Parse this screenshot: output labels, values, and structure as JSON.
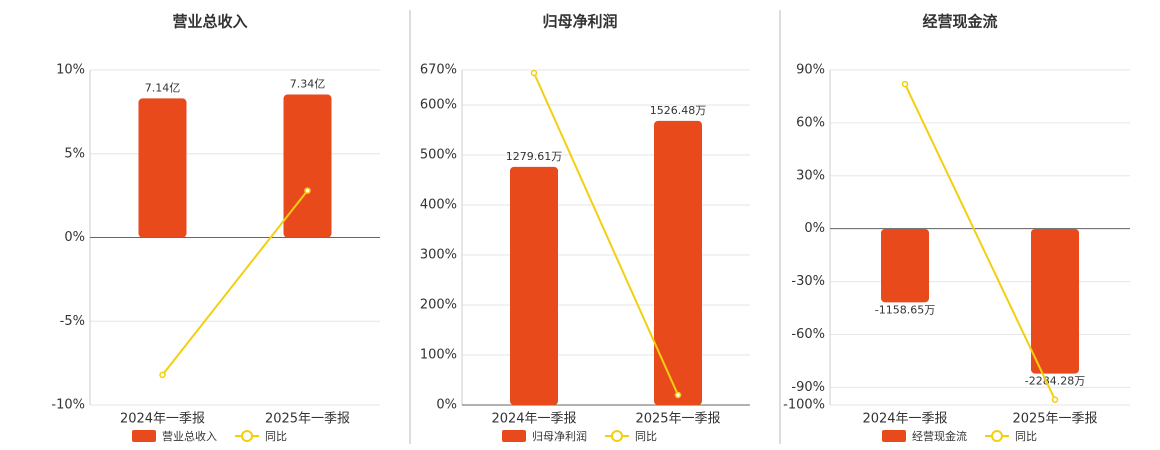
{
  "chart_data": [
    {
      "type": "bar",
      "title": "营业总收入",
      "categories": [
        "2024年一季报",
        "2025年一季报"
      ],
      "series": [
        {
          "name": "营业总收入",
          "type": "bar",
          "axis": "y2",
          "color": "#e84a1c",
          "values": [
            7.14,
            7.34
          ],
          "value_labels": [
            "7.14亿",
            "7.34亿"
          ]
        },
        {
          "name": "同比",
          "type": "line",
          "color": "#f2cf0f",
          "values": [
            -8.2,
            2.8
          ]
        }
      ],
      "ylim": [
        -10,
        10
      ],
      "yticks": [
        {
          "value": -10,
          "label": "-10%"
        },
        {
          "value": -5,
          "label": "-5%"
        },
        {
          "value": 0,
          "label": "0%"
        },
        {
          "value": 5,
          "label": "5%"
        },
        {
          "value": 10,
          "label": "10%"
        }
      ],
      "y2lim": [
        -8.6,
        8.6
      ],
      "grid": true
    },
    {
      "type": "bar",
      "title": "归母净利润",
      "categories": [
        "2024年一季报",
        "2025年一季报"
      ],
      "series": [
        {
          "name": "归母净利润",
          "type": "bar",
          "axis": "y2",
          "color": "#e84a1c",
          "values": [
            1279.61,
            1526.48
          ],
          "value_labels": [
            "1279.61万",
            "1526.48万"
          ]
        },
        {
          "name": "同比",
          "type": "line",
          "color": "#f2cf0f",
          "values": [
            664,
            20
          ]
        }
      ],
      "ylim": [
        0,
        670
      ],
      "yticks": [
        {
          "value": 0,
          "label": "0%"
        },
        {
          "value": 100,
          "label": "100%"
        },
        {
          "value": 200,
          "label": "200%"
        },
        {
          "value": 300,
          "label": "300%"
        },
        {
          "value": 400,
          "label": "400%"
        },
        {
          "value": 500,
          "label": "500%"
        },
        {
          "value": 600,
          "label": "600%"
        },
        {
          "value": 670,
          "label": "670%"
        }
      ],
      "y2lim": [
        0,
        1800
      ],
      "grid": true
    },
    {
      "type": "bar",
      "title": "经营现金流",
      "categories": [
        "2024年一季报",
        "2025年一季报"
      ],
      "series": [
        {
          "name": "经营现金流",
          "type": "bar",
          "axis": "y2",
          "color": "#e84a1c",
          "values": [
            -1158.65,
            -2284.28
          ],
          "value_labels": [
            "-1158.65万",
            "-2284.28万"
          ]
        },
        {
          "name": "同比",
          "type": "line",
          "color": "#f2cf0f",
          "values": [
            82,
            -97
          ]
        }
      ],
      "ylim": [
        -100,
        90
      ],
      "yticks": [
        {
          "value": -100,
          "label": "-100%"
        },
        {
          "value": -90,
          "label": "-90%"
        },
        {
          "value": -60,
          "label": "-60%"
        },
        {
          "value": -30,
          "label": "-30%"
        },
        {
          "value": 0,
          "label": "0%"
        },
        {
          "value": 30,
          "label": "30%"
        },
        {
          "value": 60,
          "label": "60%"
        },
        {
          "value": 90,
          "label": "90%"
        }
      ],
      "y2lim": [
        -2780,
        2510
      ],
      "grid": true
    }
  ]
}
